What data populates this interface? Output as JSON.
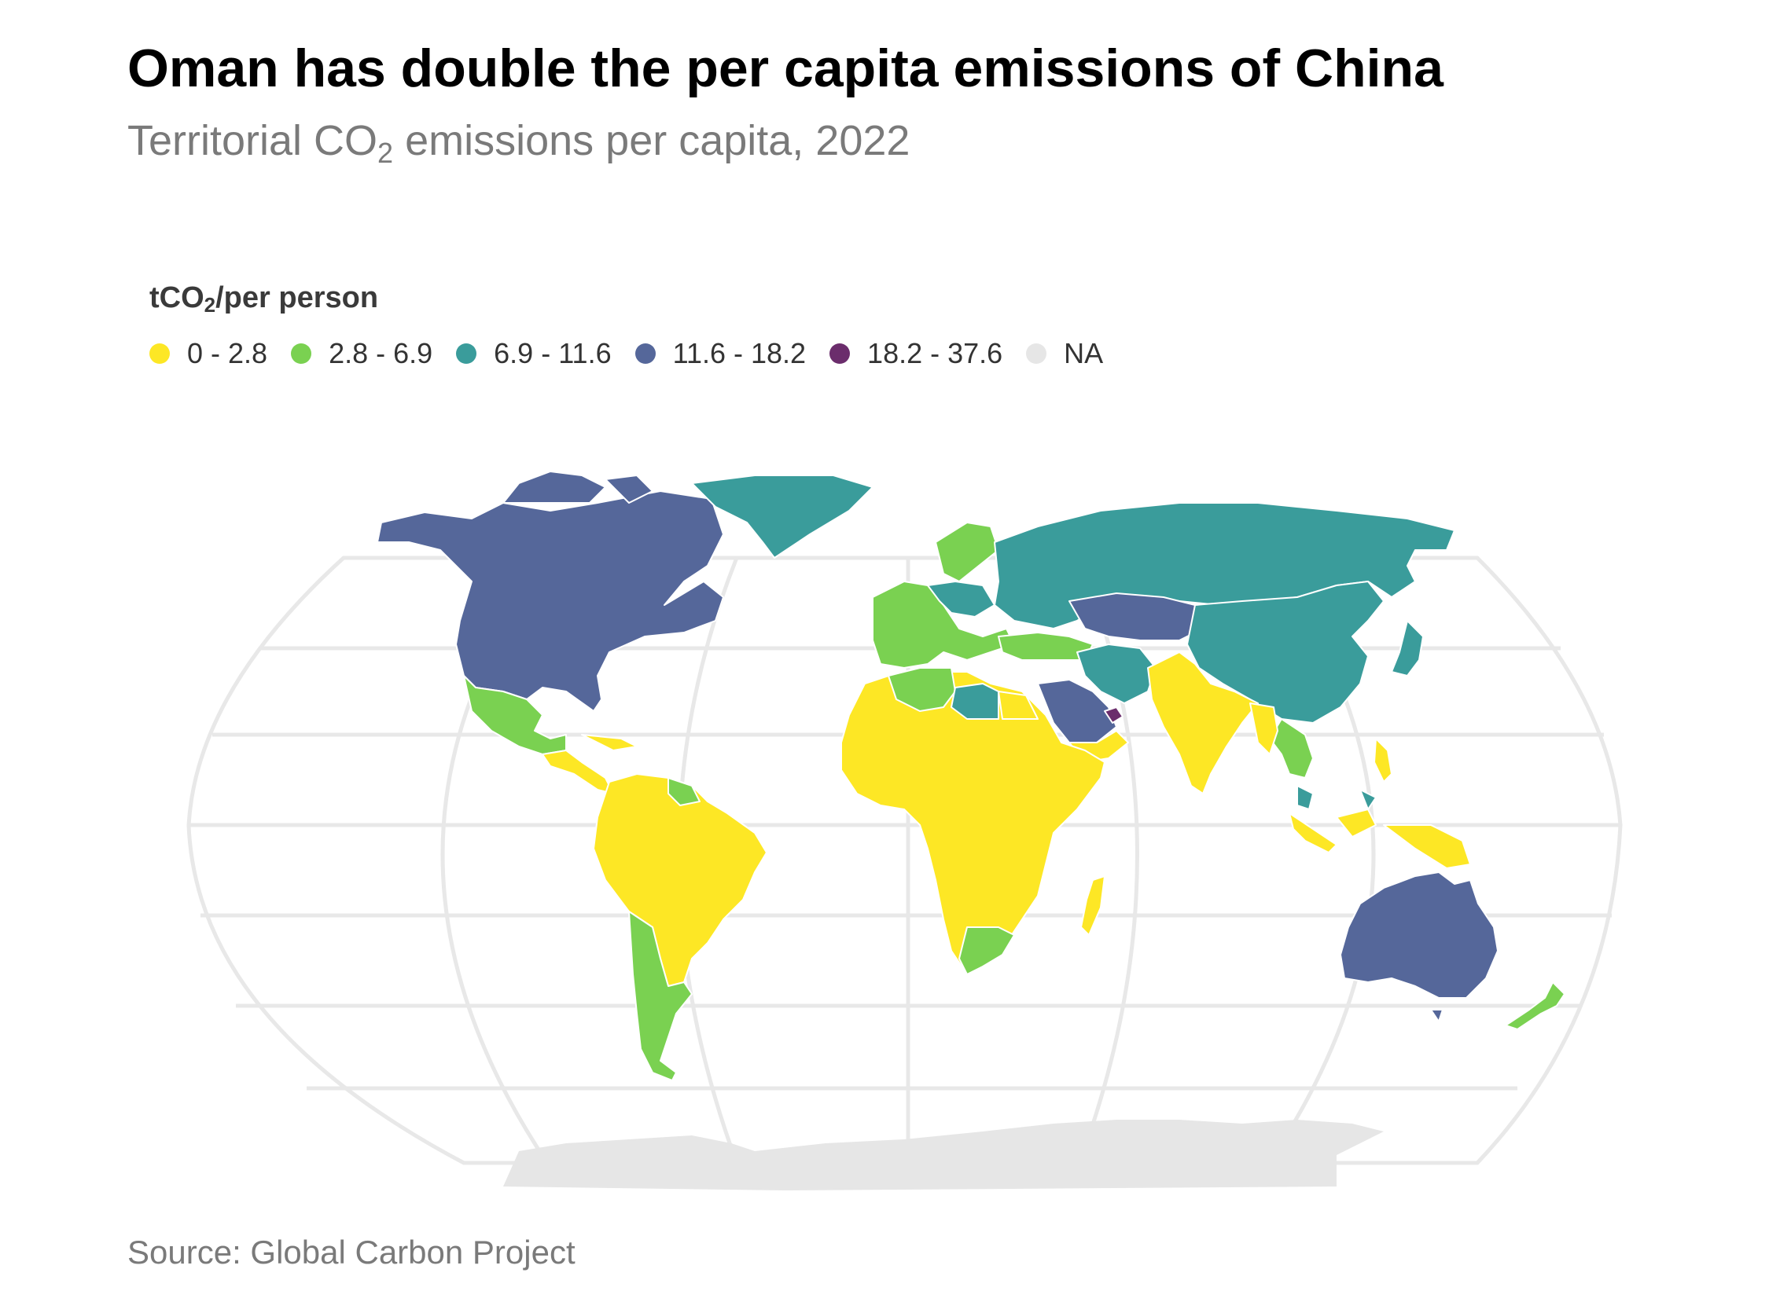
{
  "title": "Oman has double the per capita emissions of China",
  "subtitle_pre": "Territorial CO",
  "subtitle_sub": "2",
  "subtitle_post": " emissions per capita, 2022",
  "legend": {
    "title_pre": "tCO",
    "title_sub": "2",
    "title_post": "/per person",
    "items": [
      {
        "label": "0 - 2.8",
        "color": "#fde725"
      },
      {
        "label": "2.8 - 6.9",
        "color": "#7ad151"
      },
      {
        "label": "6.9 - 11.6",
        "color": "#3a9c9b"
      },
      {
        "label": "11.6 - 18.2",
        "color": "#55679a"
      },
      {
        "label": "18.2 - 37.6",
        "color": "#6b2d6c"
      },
      {
        "label": "NA",
        "color": "#e6e6e6"
      }
    ]
  },
  "source": "Source: Global Carbon Project",
  "map_regions": [
    {
      "name": "North America (USA, Canada)",
      "bin": "11.6 - 18.2",
      "color": "#55679a"
    },
    {
      "name": "Greenland",
      "bin": "6.9 - 11.6",
      "color": "#3a9c9b"
    },
    {
      "name": "Mexico",
      "bin": "2.8 - 6.9",
      "color": "#7ad151"
    },
    {
      "name": "Central America & Caribbean",
      "bin": "0 - 2.8",
      "color": "#fde725"
    },
    {
      "name": "South America (north)",
      "bin": "0 - 2.8",
      "color": "#fde725"
    },
    {
      "name": "Chile & Argentina",
      "bin": "2.8 - 6.9",
      "color": "#7ad151"
    },
    {
      "name": "Western Europe",
      "bin": "2.8 - 6.9",
      "color": "#7ad151"
    },
    {
      "name": "Central Europe",
      "bin": "6.9 - 11.6",
      "color": "#3a9c9b"
    },
    {
      "name": "Russia",
      "bin": "6.9 - 11.6",
      "color": "#3a9c9b"
    },
    {
      "name": "Kazakhstan",
      "bin": "11.6 - 18.2",
      "color": "#55679a"
    },
    {
      "name": "China",
      "bin": "6.9 - 11.6",
      "color": "#3a9c9b"
    },
    {
      "name": "Iran",
      "bin": "6.9 - 11.6",
      "color": "#3a9c9b"
    },
    {
      "name": "Saudi Arabia",
      "bin": "11.6 - 18.2",
      "color": "#55679a"
    },
    {
      "name": "Qatar",
      "bin": "18.2 - 37.6",
      "color": "#6b2d6c"
    },
    {
      "name": "Yemen",
      "bin": "0 - 2.8",
      "color": "#fde725"
    },
    {
      "name": "India & South Asia",
      "bin": "0 - 2.8",
      "color": "#fde725"
    },
    {
      "name": "Southeast Asia",
      "bin": "2.8 - 6.9",
      "color": "#7ad151"
    },
    {
      "name": "Indonesia",
      "bin": "0 - 2.8",
      "color": "#fde725"
    },
    {
      "name": "Malaysia",
      "bin": "6.9 - 11.6",
      "color": "#3a9c9b"
    },
    {
      "name": "Japan & Korea",
      "bin": "6.9 - 11.6",
      "color": "#3a9c9b"
    },
    {
      "name": "Africa",
      "bin": "0 - 2.8",
      "color": "#fde725"
    },
    {
      "name": "Algeria & Egypt",
      "bin": "2.8 - 6.9",
      "color": "#7ad151"
    },
    {
      "name": "Libya",
      "bin": "6.9 - 11.6",
      "color": "#3a9c9b"
    },
    {
      "name": "South Africa",
      "bin": "2.8 - 6.9",
      "color": "#7ad151"
    },
    {
      "name": "Australia",
      "bin": "11.6 - 18.2",
      "color": "#55679a"
    },
    {
      "name": "New Zealand",
      "bin": "2.8 - 6.9",
      "color": "#7ad151"
    },
    {
      "name": "Antarctica",
      "bin": "NA",
      "color": "#e6e6e6"
    }
  ]
}
